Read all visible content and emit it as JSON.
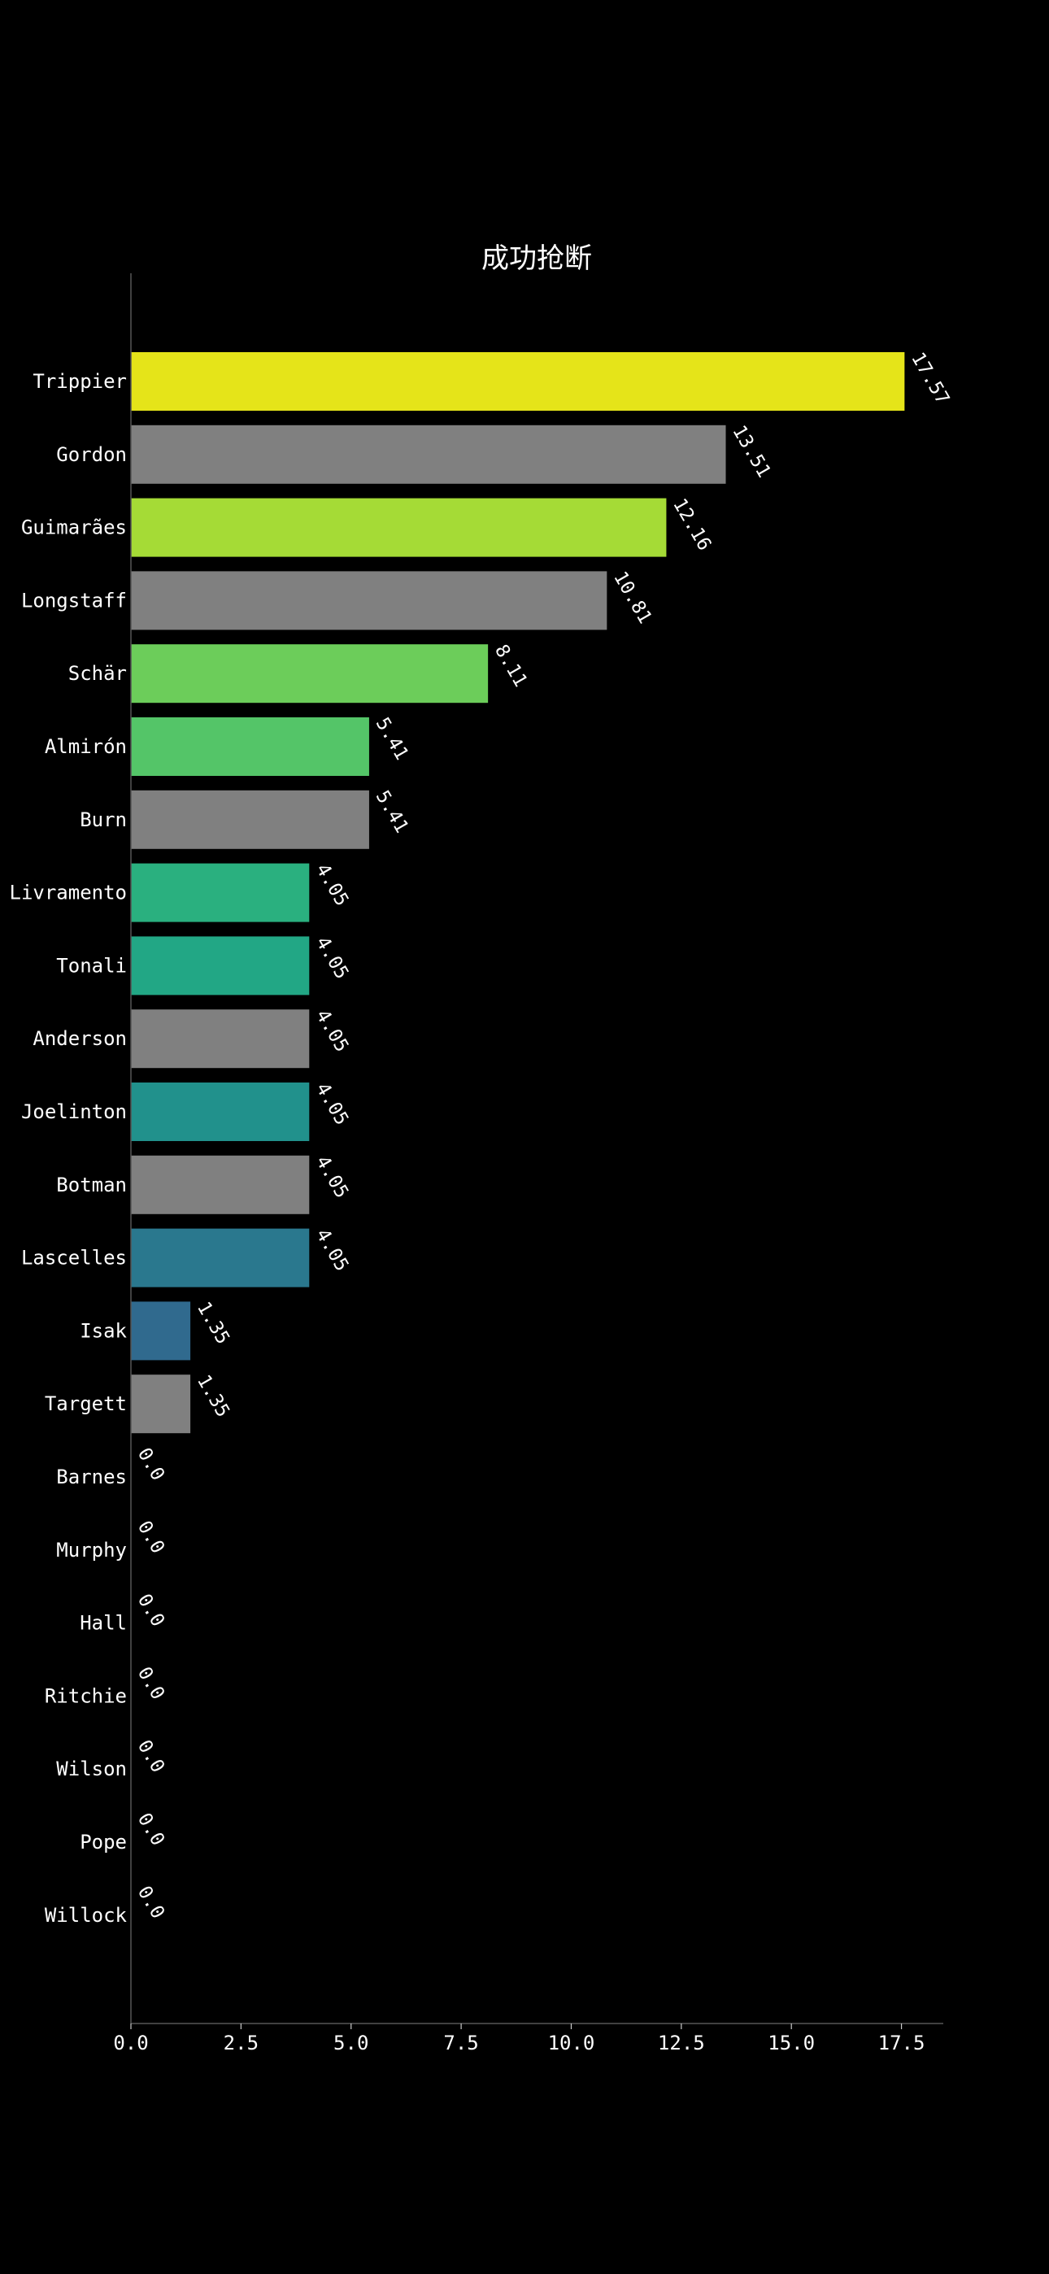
{
  "chart_data": {
    "type": "bar",
    "orientation": "horizontal",
    "title": "成功抢断",
    "xlabel": "",
    "ylabel": "",
    "xlim": [
      0,
      18.45
    ],
    "x_ticks": [
      "0.0",
      "2.5",
      "5.0",
      "7.5",
      "10.0",
      "12.5",
      "15.0",
      "17.5"
    ],
    "x_tick_values": [
      0,
      2.5,
      5,
      7.5,
      10,
      12.5,
      15,
      17.5
    ],
    "grid": false,
    "legend": "none",
    "categories": [
      "Trippier",
      "Gordon",
      "Guimarães",
      "Longstaff",
      "Schär",
      "Almirón",
      "Burn",
      "Livramento",
      "Tonali",
      "Anderson",
      "Joelinton",
      "Botman",
      "Lascelles",
      "Isak",
      "Targett",
      "Barnes",
      "Murphy",
      "Hall",
      "Ritchie",
      "Wilson",
      "Pope",
      "Willock"
    ],
    "values": [
      17.57,
      13.51,
      12.16,
      10.81,
      8.11,
      5.41,
      5.41,
      4.05,
      4.05,
      4.05,
      4.05,
      4.05,
      4.05,
      1.35,
      1.35,
      0.0,
      0.0,
      0.0,
      0.0,
      0.0,
      0.0,
      0.0
    ],
    "value_labels": [
      "17.57",
      "13.51",
      "12.16",
      "10.81",
      "8.11",
      "5.41",
      "5.41",
      "4.05",
      "4.05",
      "4.05",
      "4.05",
      "4.05",
      "4.05",
      "1.35",
      "1.35",
      "0.0",
      "0.0",
      "0.0",
      "0.0",
      "0.0",
      "0.0",
      "0.0"
    ],
    "colors": [
      "#e5e419",
      "#808080",
      "#a5db36",
      "#808080",
      "#6ccd5a",
      "#54c568",
      "#808080",
      "#2ab07f",
      "#22a785",
      "#808080",
      "#21918c",
      "#808080",
      "#2a788e",
      "#306a8e",
      "#808080",
      "#808080",
      "#808080",
      "#808080",
      "#808080",
      "#808080",
      "#808080",
      "#808080"
    ]
  }
}
